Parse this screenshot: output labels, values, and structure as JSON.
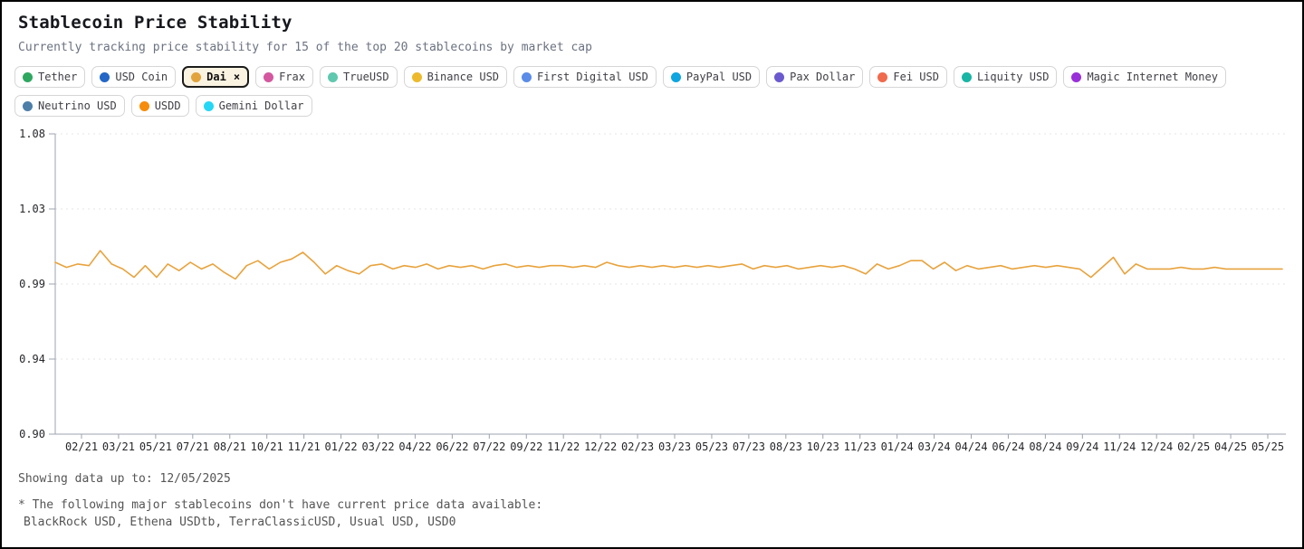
{
  "header": {
    "title": "Stablecoin Price Stability",
    "subtitle": "Currently tracking price stability for 15 of the top 20 stablecoins by market cap"
  },
  "filters": {
    "chips": [
      {
        "label": "Tether",
        "color": "#2ea760",
        "selected": false
      },
      {
        "label": "USD Coin",
        "color": "#2467c6",
        "selected": false
      },
      {
        "label": "Dai",
        "color": "#e2a33c",
        "selected": true,
        "close_label": "×"
      },
      {
        "label": "Frax",
        "color": "#d3589f",
        "selected": false
      },
      {
        "label": "TrueUSD",
        "color": "#5fc8ae",
        "selected": false
      },
      {
        "label": "Binance USD",
        "color": "#ecba2c",
        "selected": false
      },
      {
        "label": "First Digital USD",
        "color": "#5b8ce8",
        "selected": false
      },
      {
        "label": "PayPal USD",
        "color": "#0ea5e0",
        "selected": false
      },
      {
        "label": "Pax Dollar",
        "color": "#6b5ace",
        "selected": false
      },
      {
        "label": "Fei USD",
        "color": "#f06a4d",
        "selected": false
      },
      {
        "label": "Liquity USD",
        "color": "#18b5a4",
        "selected": false
      },
      {
        "label": "Magic Internet Money",
        "color": "#9a30d8",
        "selected": false
      },
      {
        "label": "Neutrino USD",
        "color": "#4d7fa8",
        "selected": false
      },
      {
        "label": "USDD",
        "color": "#f68c0b",
        "selected": false
      },
      {
        "label": "Gemini Dollar",
        "color": "#25d7f4",
        "selected": false
      }
    ]
  },
  "chart_data": {
    "type": "line",
    "title": "Dai price stability over time",
    "xlabel": "",
    "ylabel": "",
    "ylim": [
      0.9,
      1.08
    ],
    "grid": "horizontal-dashed",
    "legend": "none (filter chips act as legend)",
    "y_ticks": {
      "labels": [
        "1.08",
        "1.03",
        "0.99",
        "0.94",
        "0.90"
      ],
      "values": [
        1.08,
        1.035,
        0.99,
        0.945,
        0.9
      ]
    },
    "x_tick_labels": [
      "02/21",
      "03/21",
      "05/21",
      "07/21",
      "08/21",
      "10/21",
      "11/21",
      "01/22",
      "03/22",
      "04/22",
      "06/22",
      "07/22",
      "09/22",
      "11/22",
      "12/22",
      "02/23",
      "03/23",
      "05/23",
      "07/23",
      "08/23",
      "10/23",
      "11/23",
      "01/24",
      "03/24",
      "04/24",
      "06/24",
      "08/24",
      "09/24",
      "11/24",
      "12/24",
      "02/25",
      "04/25",
      "05/25"
    ],
    "x_range_note": "weekly samples from 01/2021 to 05/2025",
    "series": [
      {
        "name": "Dai",
        "color": "#e8a33d",
        "values": [
          1.003,
          1.0,
          1.002,
          1.001,
          1.01,
          1.002,
          0.999,
          0.994,
          1.001,
          0.994,
          1.002,
          0.998,
          1.003,
          0.999,
          1.002,
          0.997,
          0.993,
          1.001,
          1.004,
          0.999,
          1.003,
          1.005,
          1.009,
          1.003,
          0.996,
          1.001,
          0.998,
          0.996,
          1.001,
          1.002,
          0.999,
          1.001,
          1.0,
          1.002,
          0.999,
          1.001,
          1.0,
          1.001,
          0.999,
          1.001,
          1.002,
          1.0,
          1.001,
          1.0,
          1.001,
          1.001,
          1.0,
          1.001,
          1.0,
          1.003,
          1.001,
          1.0,
          1.001,
          1.0,
          1.001,
          1.0,
          1.001,
          1.0,
          1.001,
          1.0,
          1.001,
          1.002,
          0.999,
          1.001,
          1.0,
          1.001,
          0.999,
          1.0,
          1.001,
          1.0,
          1.001,
          0.999,
          0.996,
          1.002,
          0.999,
          1.001,
          1.004,
          1.004,
          0.999,
          1.003,
          0.998,
          1.001,
          0.999,
          1.0,
          1.001,
          0.999,
          1.0,
          1.001,
          1.0,
          1.001,
          1.0,
          0.999,
          0.994,
          1.0,
          1.006,
          0.996,
          1.002,
          0.999,
          0.999,
          0.999,
          1.0,
          0.999,
          0.999,
          1.0,
          0.999,
          0.999,
          0.999,
          0.999,
          0.999,
          0.999
        ]
      }
    ]
  },
  "footer": {
    "showing": "Showing data up to: 12/05/2025",
    "note_line1": "* The following major stablecoins don't have current price data available:",
    "note_line2": "BlackRock USD, Ethena USDtb, TerraClassicUSD, Usual USD, USD0"
  }
}
